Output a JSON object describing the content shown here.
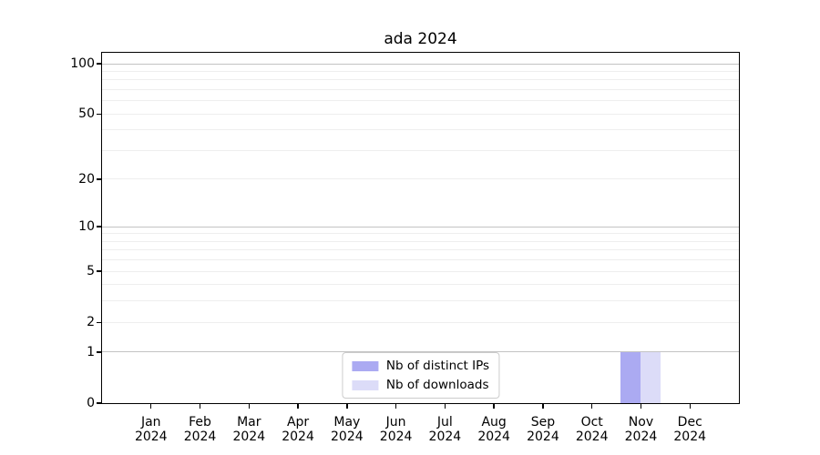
{
  "figure": {
    "background": "#ffffff"
  },
  "chart_data": {
    "type": "bar",
    "title": "ada 2024",
    "xlabel": "",
    "ylabel": "",
    "categories": [
      {
        "month": "Jan",
        "year": "2024"
      },
      {
        "month": "Feb",
        "year": "2024"
      },
      {
        "month": "Mar",
        "year": "2024"
      },
      {
        "month": "Apr",
        "year": "2024"
      },
      {
        "month": "May",
        "year": "2024"
      },
      {
        "month": "Jun",
        "year": "2024"
      },
      {
        "month": "Jul",
        "year": "2024"
      },
      {
        "month": "Aug",
        "year": "2024"
      },
      {
        "month": "Sep",
        "year": "2024"
      },
      {
        "month": "Oct",
        "year": "2024"
      },
      {
        "month": "Nov",
        "year": "2024"
      },
      {
        "month": "Dec",
        "year": "2024"
      }
    ],
    "series": [
      {
        "name": "Nb of distinct IPs",
        "color": "#abaaf2",
        "values": [
          0,
          0,
          0,
          0,
          0,
          0,
          0,
          0,
          0,
          0,
          1,
          0
        ]
      },
      {
        "name": "Nb of downloads",
        "color": "#dcdcf8",
        "values": [
          0,
          0,
          0,
          0,
          0,
          0,
          0,
          0,
          0,
          0,
          1,
          0
        ]
      }
    ],
    "yticks": [
      "0",
      "1",
      "2",
      "5",
      "10",
      "20",
      "50",
      "100"
    ],
    "ytick_values": [
      0,
      1,
      2,
      5,
      10,
      20,
      50,
      100
    ],
    "ylim": [
      0,
      116
    ],
    "yscale": "log1p",
    "grid": {
      "major_values": [
        1,
        10,
        100
      ],
      "minor_values": [
        2,
        3,
        4,
        5,
        6,
        7,
        8,
        9,
        20,
        30,
        40,
        50,
        60,
        70,
        80,
        90
      ],
      "major_color": "#c3c3c3",
      "minor_color": "#eeeeee"
    },
    "legend_position": "lower center",
    "axis_color": "#000000"
  }
}
